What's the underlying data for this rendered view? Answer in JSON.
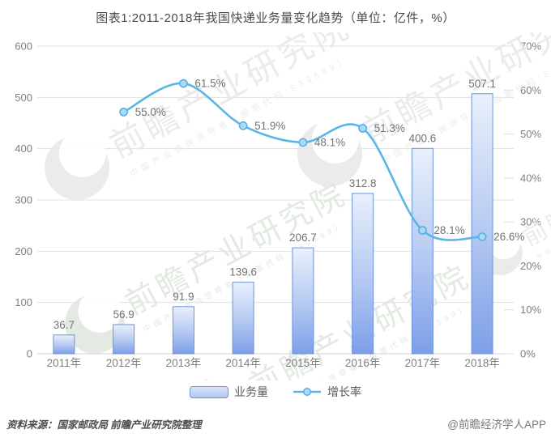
{
  "title": "图表1:2011-2018年我国快递业务量变化趋势（单位：亿件，%）",
  "chart_data": {
    "type": "bar+line combo",
    "categories": [
      "2011年",
      "2012年",
      "2013年",
      "2014年",
      "2015年",
      "2016年",
      "2017年",
      "2018年"
    ],
    "series": [
      {
        "name": "业务量",
        "type": "bar",
        "axis": "left",
        "values": [
          36.7,
          56.9,
          91.9,
          139.6,
          206.7,
          312.8,
          400.6,
          507.1
        ],
        "labels": [
          "36.7",
          "56.9",
          "91.9",
          "139.6",
          "206.7",
          "312.8",
          "400.6",
          "507.1"
        ]
      },
      {
        "name": "增长率",
        "type": "line",
        "axis": "right",
        "values": [
          null,
          55.0,
          61.5,
          51.9,
          48.1,
          51.3,
          28.1,
          26.6
        ],
        "labels": [
          null,
          "55.0%",
          "61.5%",
          "51.9%",
          "48.1%",
          "51.3%",
          "28.1%",
          "26.6%"
        ]
      }
    ],
    "left_axis": {
      "min": 0,
      "max": 600,
      "step": 100,
      "ticks": [
        "0",
        "100",
        "200",
        "300",
        "400",
        "500",
        "600"
      ]
    },
    "right_axis": {
      "min": 0,
      "max": 70,
      "step": 10,
      "ticks": [
        "0%",
        "10%",
        "20%",
        "30%",
        "40%",
        "50%",
        "60%",
        "70%"
      ]
    },
    "grid": true,
    "legend_position": "bottom"
  },
  "legend": {
    "bar_label": "业务量",
    "line_label": "增长率"
  },
  "footer": {
    "source": "资料来源：国家邮政局 前瞻产业研究院整理",
    "brand": "@前瞻经济学人APP"
  },
  "watermark": {
    "big": "前瞻产业研究院",
    "small": "中国产业咨询领导者（股票代码:839599）"
  },
  "colors": {
    "title": "#4a4a4a",
    "axis_label": "#808080",
    "data_label": "#737373",
    "grid": "#e1e1e1",
    "baseline": "#d2d2d2",
    "bar_top": "#eaf0fc",
    "bar_mid": "#b3c8f1",
    "bar_bottom": "#7d9fe8",
    "bar_border": "#6d92de",
    "line": "#5bb5e7",
    "marker_fill": "#aed9f3",
    "marker_stroke": "#55b0e4",
    "watermark_gray": "#e8e8e8",
    "watermark_green": "#dde7dc"
  }
}
